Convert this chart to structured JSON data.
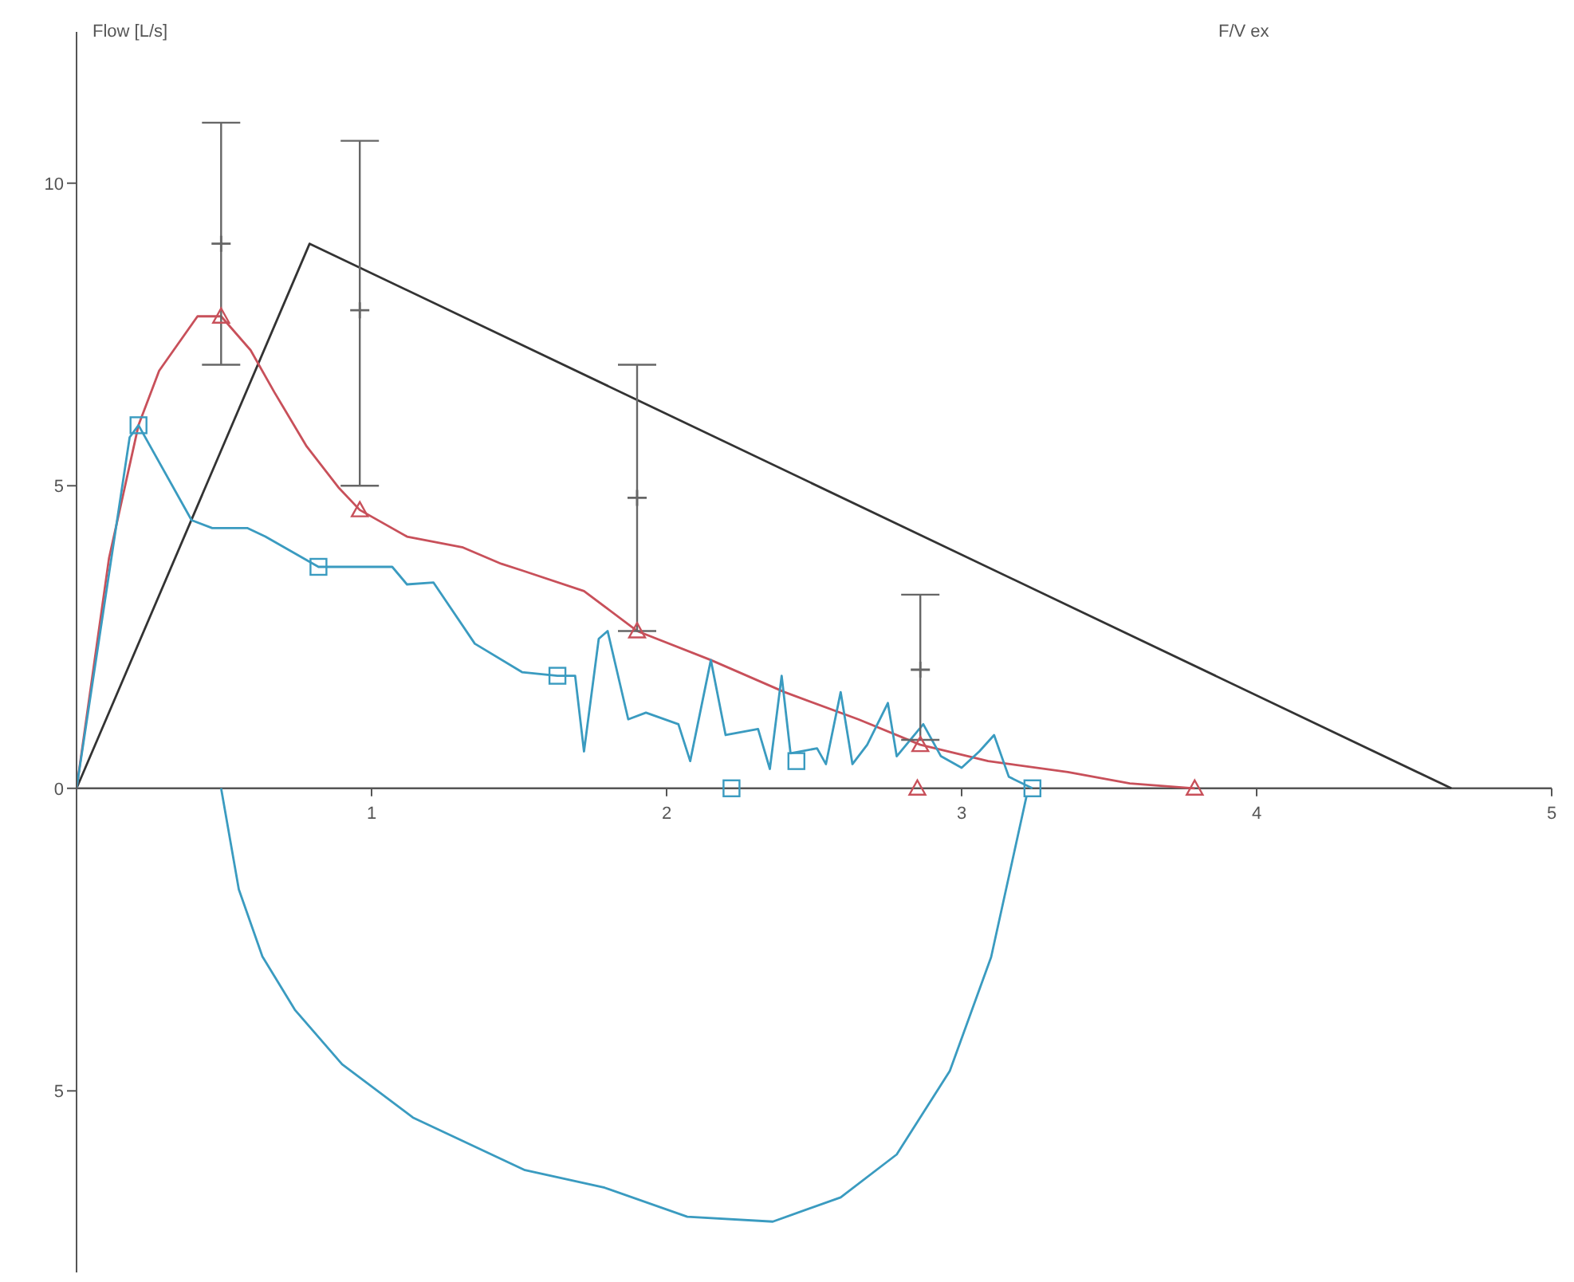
{
  "chart_data": {
    "type": "line",
    "title": "F/V ex",
    "ylabel": "Flow [L/s]",
    "xlim": [
      0,
      5
    ],
    "ylim": [
      -8,
      12.5
    ],
    "xticks": [
      1,
      2,
      3,
      4,
      5
    ],
    "yticks": [
      {
        "value": -5,
        "label": "5"
      },
      0,
      5,
      10
    ],
    "grid": false,
    "marker": "none",
    "line_style": "solid",
    "series": [
      {
        "color": "#333333",
        "x": [
          0,
          0.79,
          4.66
        ],
        "values": [
          0,
          9.0,
          0
        ]
      },
      {
        "color": "#c8505a",
        "x": [
          0,
          0.11,
          0.21,
          0.28,
          0.41,
          0.49,
          0.59,
          0.67,
          0.78,
          0.89,
          0.96,
          1.12,
          1.31,
          1.44,
          1.51,
          1.72,
          1.9,
          2.15,
          2.4,
          2.65,
          2.86,
          3.09,
          3.36,
          3.57,
          3.79
        ],
        "values": [
          0,
          3.8,
          6.0,
          6.9,
          7.8,
          7.8,
          7.24,
          6.55,
          5.65,
          4.96,
          4.6,
          4.16,
          3.98,
          3.71,
          3.6,
          3.26,
          2.6,
          2.12,
          1.59,
          1.14,
          0.72,
          0.45,
          0.27,
          0.08,
          0
        ]
      },
      {
        "type": "scatter",
        "marker": "triangle",
        "color": "#c8505a",
        "x": [
          0.49,
          0.96,
          1.9,
          2.86,
          2.85,
          3.79
        ],
        "values": [
          7.8,
          4.6,
          2.6,
          0.72,
          0,
          0
        ]
      },
      {
        "type": "line",
        "color": "#3a9bc0",
        "x": [
          0,
          0.18,
          0.21,
          0.39,
          0.46,
          0.58,
          0.64,
          0.82,
          1.07,
          1.12,
          1.21,
          1.35,
          1.51,
          1.63,
          1.69,
          1.72,
          1.77,
          1.8,
          1.87,
          1.93,
          2.04,
          2.08,
          2.15,
          2.2,
          2.31,
          2.35,
          2.39,
          2.42,
          2.51,
          2.54,
          2.59,
          2.63,
          2.68,
          2.75,
          2.78,
          2.87,
          2.93,
          3.0,
          3.06,
          3.11,
          3.16,
          3.24
        ],
        "values": [
          0,
          5.8,
          6.0,
          4.43,
          4.3,
          4.3,
          4.16,
          3.66,
          3.66,
          3.37,
          3.4,
          2.39,
          1.92,
          1.86,
          1.86,
          0.61,
          2.47,
          2.6,
          1.14,
          1.25,
          1.06,
          0.45,
          2.12,
          0.88,
          0.98,
          0.32,
          1.86,
          0.58,
          0.66,
          0.4,
          1.59,
          0.4,
          0.72,
          1.41,
          0.53,
          1.06,
          0.53,
          0.34,
          0.61,
          0.88,
          0.19,
          0
        ]
      },
      {
        "type": "line",
        "color": "#3a9bc0",
        "x": [
          0.49,
          0.55,
          0.63,
          0.74,
          0.9,
          1.14,
          1.52,
          1.79,
          2.07,
          2.36,
          2.59,
          2.78,
          2.96,
          3.1,
          3.22
        ],
        "values": [
          0,
          -1.67,
          -2.78,
          -3.66,
          -4.56,
          -5.44,
          -6.31,
          -6.6,
          -7.08,
          -7.16,
          -6.76,
          -6.05,
          -4.67,
          -2.79,
          -0.13
        ]
      },
      {
        "type": "scatter",
        "marker": "square",
        "color": "#3a9bc0",
        "x": [
          0.21,
          0.82,
          1.63,
          2.22,
          2.44,
          3.24
        ],
        "values": [
          6.0,
          3.66,
          1.86,
          0,
          0.45,
          0
        ]
      },
      {
        "type": "scatter",
        "marker": "cross",
        "color": "#666666",
        "x": [
          0.49,
          0.96,
          1.9,
          2.86
        ],
        "values": [
          9.0,
          7.9,
          4.8,
          1.96
        ],
        "errors": [
          [
            7.0,
            11.0
          ],
          [
            5.0,
            10.7
          ],
          [
            2.6,
            7.0
          ],
          [
            0.8,
            3.2
          ]
        ]
      }
    ]
  }
}
